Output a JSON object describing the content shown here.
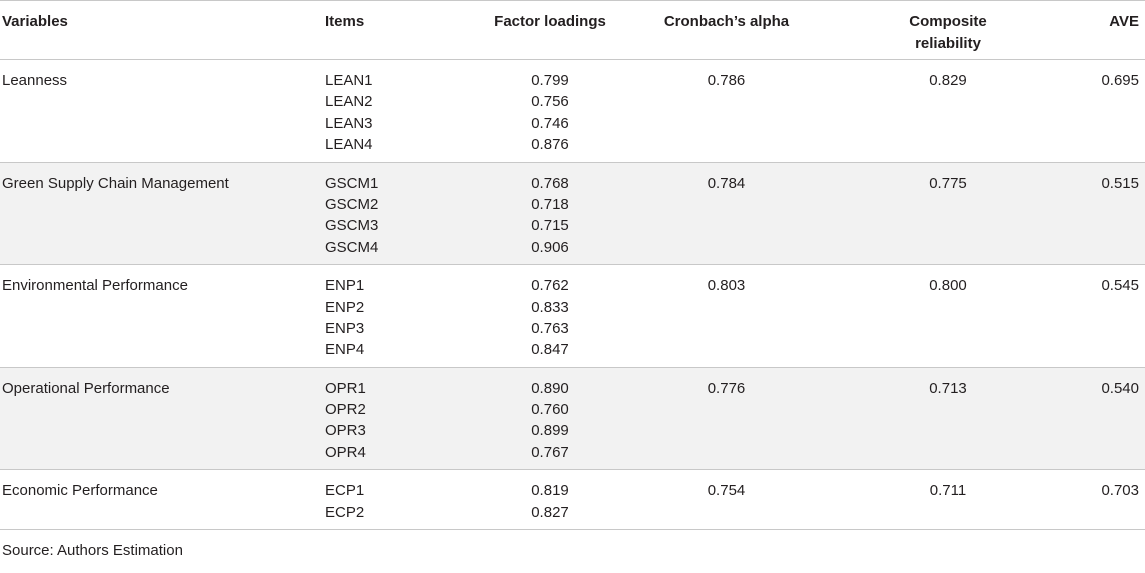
{
  "table": {
    "headers": {
      "variables": "Variables",
      "items": "Items",
      "factor_loadings": "Factor loadings",
      "cronbach_alpha": "Cronbach’s alpha",
      "composite_reliability_line1": "Composite",
      "composite_reliability_line2": "reliability",
      "ave": "AVE"
    },
    "rows": [
      {
        "variable": "Leanness",
        "items": [
          "LEAN1",
          "LEAN2",
          "LEAN3",
          "LEAN4"
        ],
        "loadings": [
          "0.799",
          "0.756",
          "0.746",
          "0.876"
        ],
        "cronbach_alpha": "0.786",
        "composite_reliability": "0.829",
        "ave": "0.695"
      },
      {
        "variable": "Green Supply Chain Management",
        "items": [
          "GSCM1",
          "GSCM2",
          "GSCM3",
          "GSCM4"
        ],
        "loadings": [
          "0.768",
          "0.718",
          "0.715",
          "0.906"
        ],
        "cronbach_alpha": "0.784",
        "composite_reliability": "0.775",
        "ave": "0.515"
      },
      {
        "variable": "Environmental Performance",
        "items": [
          "ENP1",
          "ENP2",
          "ENP3",
          "ENP4"
        ],
        "loadings": [
          "0.762",
          "0.833",
          "0.763",
          "0.847"
        ],
        "cronbach_alpha": "0.803",
        "composite_reliability": "0.800",
        "ave": "0.545"
      },
      {
        "variable": "Operational Performance",
        "items": [
          "OPR1",
          "OPR2",
          "OPR3",
          "OPR4"
        ],
        "loadings": [
          "0.890",
          "0.760",
          "0.899",
          "0.767"
        ],
        "cronbach_alpha": "0.776",
        "composite_reliability": "0.713",
        "ave": "0.540"
      },
      {
        "variable": "Economic Performance",
        "items": [
          "ECP1",
          "ECP2"
        ],
        "loadings": [
          "0.819",
          "0.827"
        ],
        "cronbach_alpha": "0.754",
        "composite_reliability": "0.711",
        "ave": "0.703"
      }
    ],
    "source_note": "Source: Authors Estimation"
  }
}
